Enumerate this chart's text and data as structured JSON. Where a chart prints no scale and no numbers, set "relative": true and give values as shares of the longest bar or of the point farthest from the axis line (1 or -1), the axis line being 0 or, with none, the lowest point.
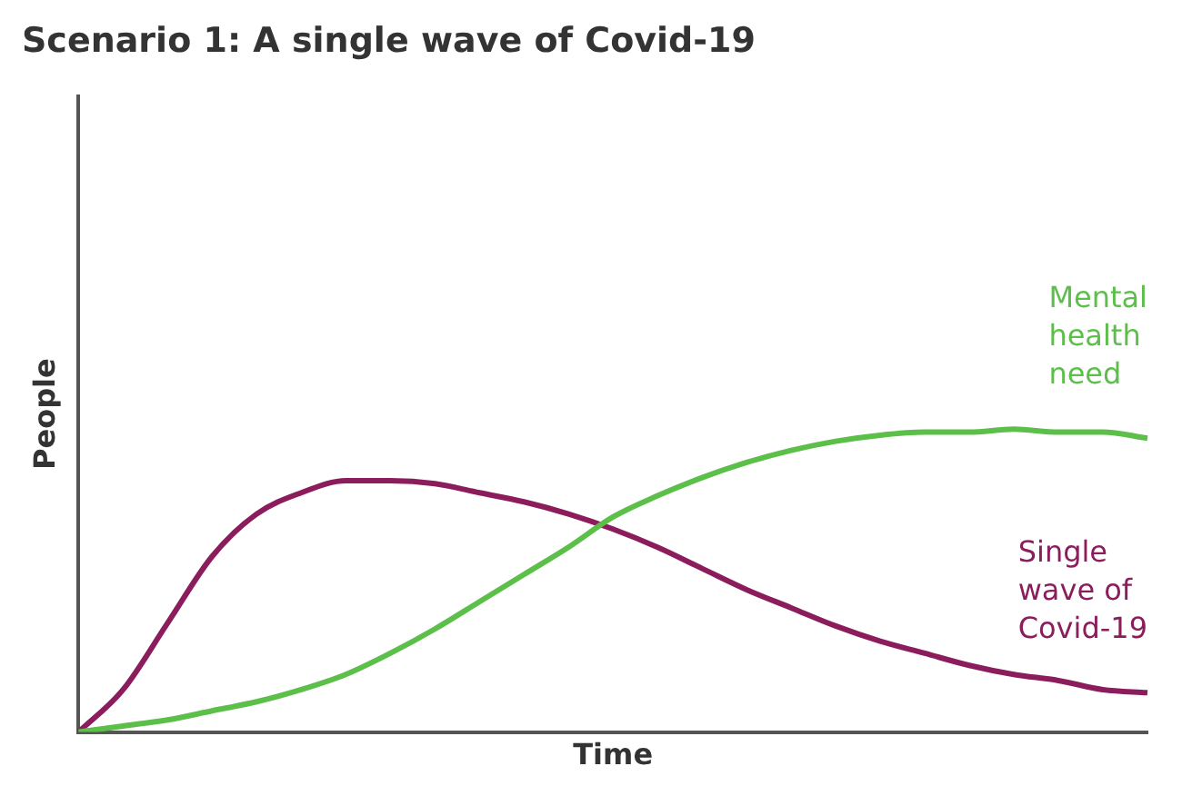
{
  "chart_data": {
    "type": "line",
    "title": "Scenario 1: A single wave of Covid-19",
    "xlabel": "Time",
    "ylabel": "People",
    "relative": true,
    "grid": false,
    "legend": false,
    "marker": "none",
    "line_style": "solid",
    "categories": [
      null,
      null,
      null,
      null,
      null,
      null,
      null,
      null,
      null,
      null,
      null,
      null,
      null,
      null,
      null,
      null,
      null,
      null,
      null,
      null,
      null,
      null,
      null,
      null,
      null
    ],
    "series": [
      {
        "name": "Mental health need",
        "color": "#5cbf4a",
        "values": [
          0,
          0.02,
          0.04,
          0.07,
          0.1,
          0.14,
          0.19,
          0.26,
          0.34,
          0.43,
          0.52,
          0.61,
          0.71,
          0.78,
          0.84,
          0.89,
          0.93,
          0.96,
          0.98,
          0.99,
          0.99,
          1,
          0.99,
          0.99,
          0.97
        ]
      },
      {
        "name": "Single wave of Covid-19",
        "color": "#8c1d5c",
        "values": [
          0,
          0.14,
          0.36,
          0.58,
          0.72,
          0.79,
          0.83,
          0.83,
          0.82,
          0.79,
          0.76,
          0.72,
          0.67,
          0.61,
          0.54,
          0.47,
          0.41,
          0.35,
          0.3,
          0.26,
          0.22,
          0.19,
          0.17,
          0.14,
          0.13
        ]
      }
    ]
  }
}
